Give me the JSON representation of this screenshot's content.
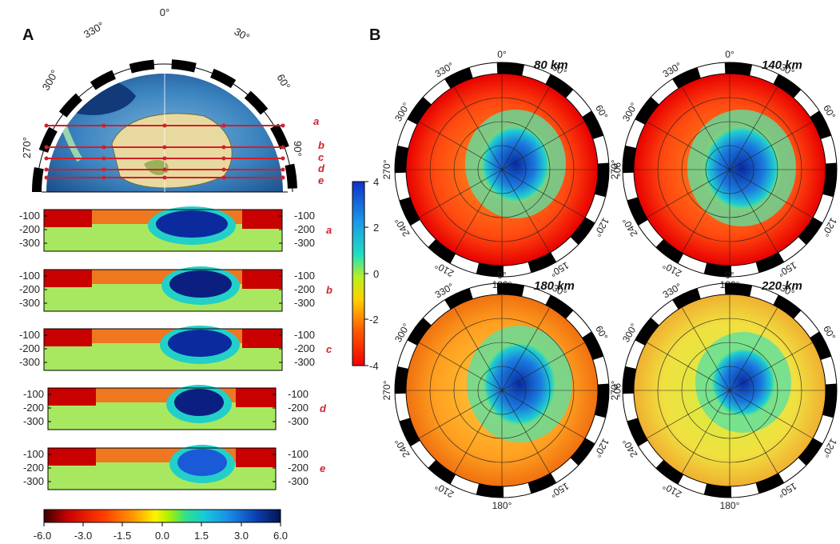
{
  "panels": {
    "A": "A",
    "B": "B"
  },
  "overview_map": {
    "longitude_labels": [
      "0°",
      "30°",
      "60°",
      "90°",
      "300°",
      "270°",
      "330°"
    ],
    "profile_labels": [
      "a",
      "b",
      "c",
      "d",
      "e"
    ]
  },
  "profiles": [
    {
      "id": "a",
      "label": "a",
      "depth_ticks": [
        "-100",
        "-200",
        "-300"
      ]
    },
    {
      "id": "b",
      "label": "b",
      "depth_ticks": [
        "-100",
        "-200",
        "-300"
      ]
    },
    {
      "id": "c",
      "label": "c",
      "depth_ticks": [
        "-100",
        "-200",
        "-300"
      ]
    },
    {
      "id": "d",
      "label": "d",
      "depth_ticks": [
        "-100",
        "-200",
        "-300"
      ]
    },
    {
      "id": "e",
      "label": "e",
      "depth_ticks": [
        "-100",
        "-200",
        "-300"
      ]
    }
  ],
  "profile_colorbar": {
    "ticks": [
      "-6.0",
      "-3.0",
      "-1.5",
      "0.0",
      "1.5",
      "3.0",
      "6.0"
    ],
    "colors": [
      "#3a0000",
      "#c80000",
      "#ff3b00",
      "#ff9a00",
      "#fff200",
      "#a8f000",
      "#2ee08a",
      "#16c8d8",
      "#1a8ce8",
      "#0a3fb0",
      "#05124e"
    ]
  },
  "slice_colorbar": {
    "ticks": [
      "4",
      "2",
      "0",
      "-2",
      "-4"
    ],
    "colors": [
      "#1030c8",
      "#1a9ae8",
      "#20e0c0",
      "#b8f020",
      "#ffd000",
      "#ff6000",
      "#f00000"
    ]
  },
  "depth_slices": [
    {
      "depth": "80 km",
      "lon_labels": [
        "0°",
        "30°",
        "60°",
        "90°",
        "120°",
        "150°",
        "180°",
        "210°",
        "240°",
        "270°",
        "300°",
        "330°"
      ]
    },
    {
      "depth": "140 km",
      "lon_labels": [
        "0°",
        "30°",
        "60°",
        "90°",
        "120°",
        "150°",
        "180°",
        "210°",
        "240°",
        "270°",
        "300°",
        "330°"
      ]
    },
    {
      "depth": "180 km",
      "lon_labels": [
        "0°",
        "30°",
        "60°",
        "90°",
        "120°",
        "150°",
        "180°",
        "210°",
        "240°",
        "270°",
        "300°",
        "330°"
      ]
    },
    {
      "depth": "220 km",
      "lon_labels": [
        "0°",
        "30°",
        "60°",
        "90°",
        "120°",
        "150°",
        "180°",
        "210°",
        "240°",
        "270°",
        "300°",
        "330°"
      ]
    }
  ],
  "colors": {
    "profile_line": "#d21f2a",
    "ocean": "#2f73b6",
    "land": "#e8d9a0"
  }
}
